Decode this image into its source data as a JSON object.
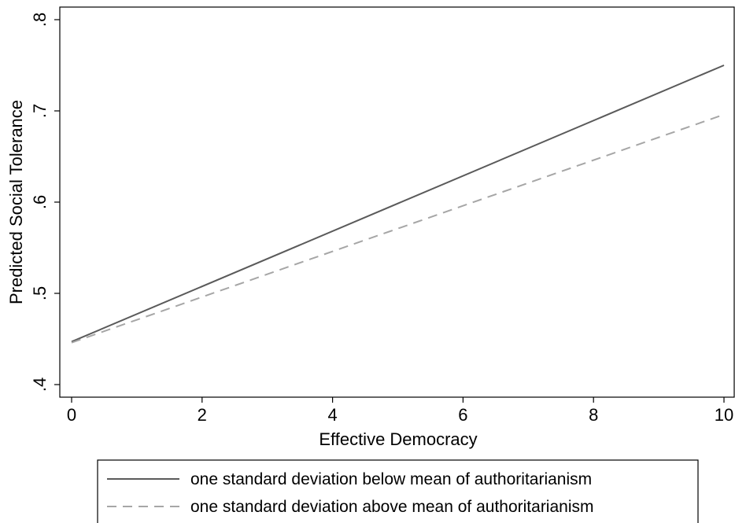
{
  "chart_data": {
    "type": "line",
    "xlabel": "Effective Democracy",
    "ylabel": "Predicted Social Tolerance",
    "xlim": [
      0,
      10
    ],
    "ylim": [
      0.4,
      0.8
    ],
    "xticks": [
      {
        "value": 0,
        "label": "0"
      },
      {
        "value": 2,
        "label": "2"
      },
      {
        "value": 4,
        "label": "4"
      },
      {
        "value": 6,
        "label": "6"
      },
      {
        "value": 8,
        "label": "8"
      },
      {
        "value": 10,
        "label": "10"
      }
    ],
    "yticks": [
      {
        "value": 0.4,
        "label": ".4"
      },
      {
        "value": 0.5,
        "label": ".5"
      },
      {
        "value": 0.6,
        "label": ".6"
      },
      {
        "value": 0.7,
        "label": ".7"
      },
      {
        "value": 0.8,
        "label": ".8"
      }
    ],
    "grid": false,
    "legend_position": "bottom",
    "series": [
      {
        "name": "one standard deviation below mean of authoritarianism",
        "style": "solid",
        "color": "#5a5a5a",
        "x": [
          0,
          10
        ],
        "y": [
          0.447,
          0.75
        ]
      },
      {
        "name": "one standard deviation above mean of authoritarianism",
        "style": "dashed",
        "color": "#a6a6a6",
        "x": [
          0,
          10
        ],
        "y": [
          0.446,
          0.696
        ]
      }
    ]
  }
}
